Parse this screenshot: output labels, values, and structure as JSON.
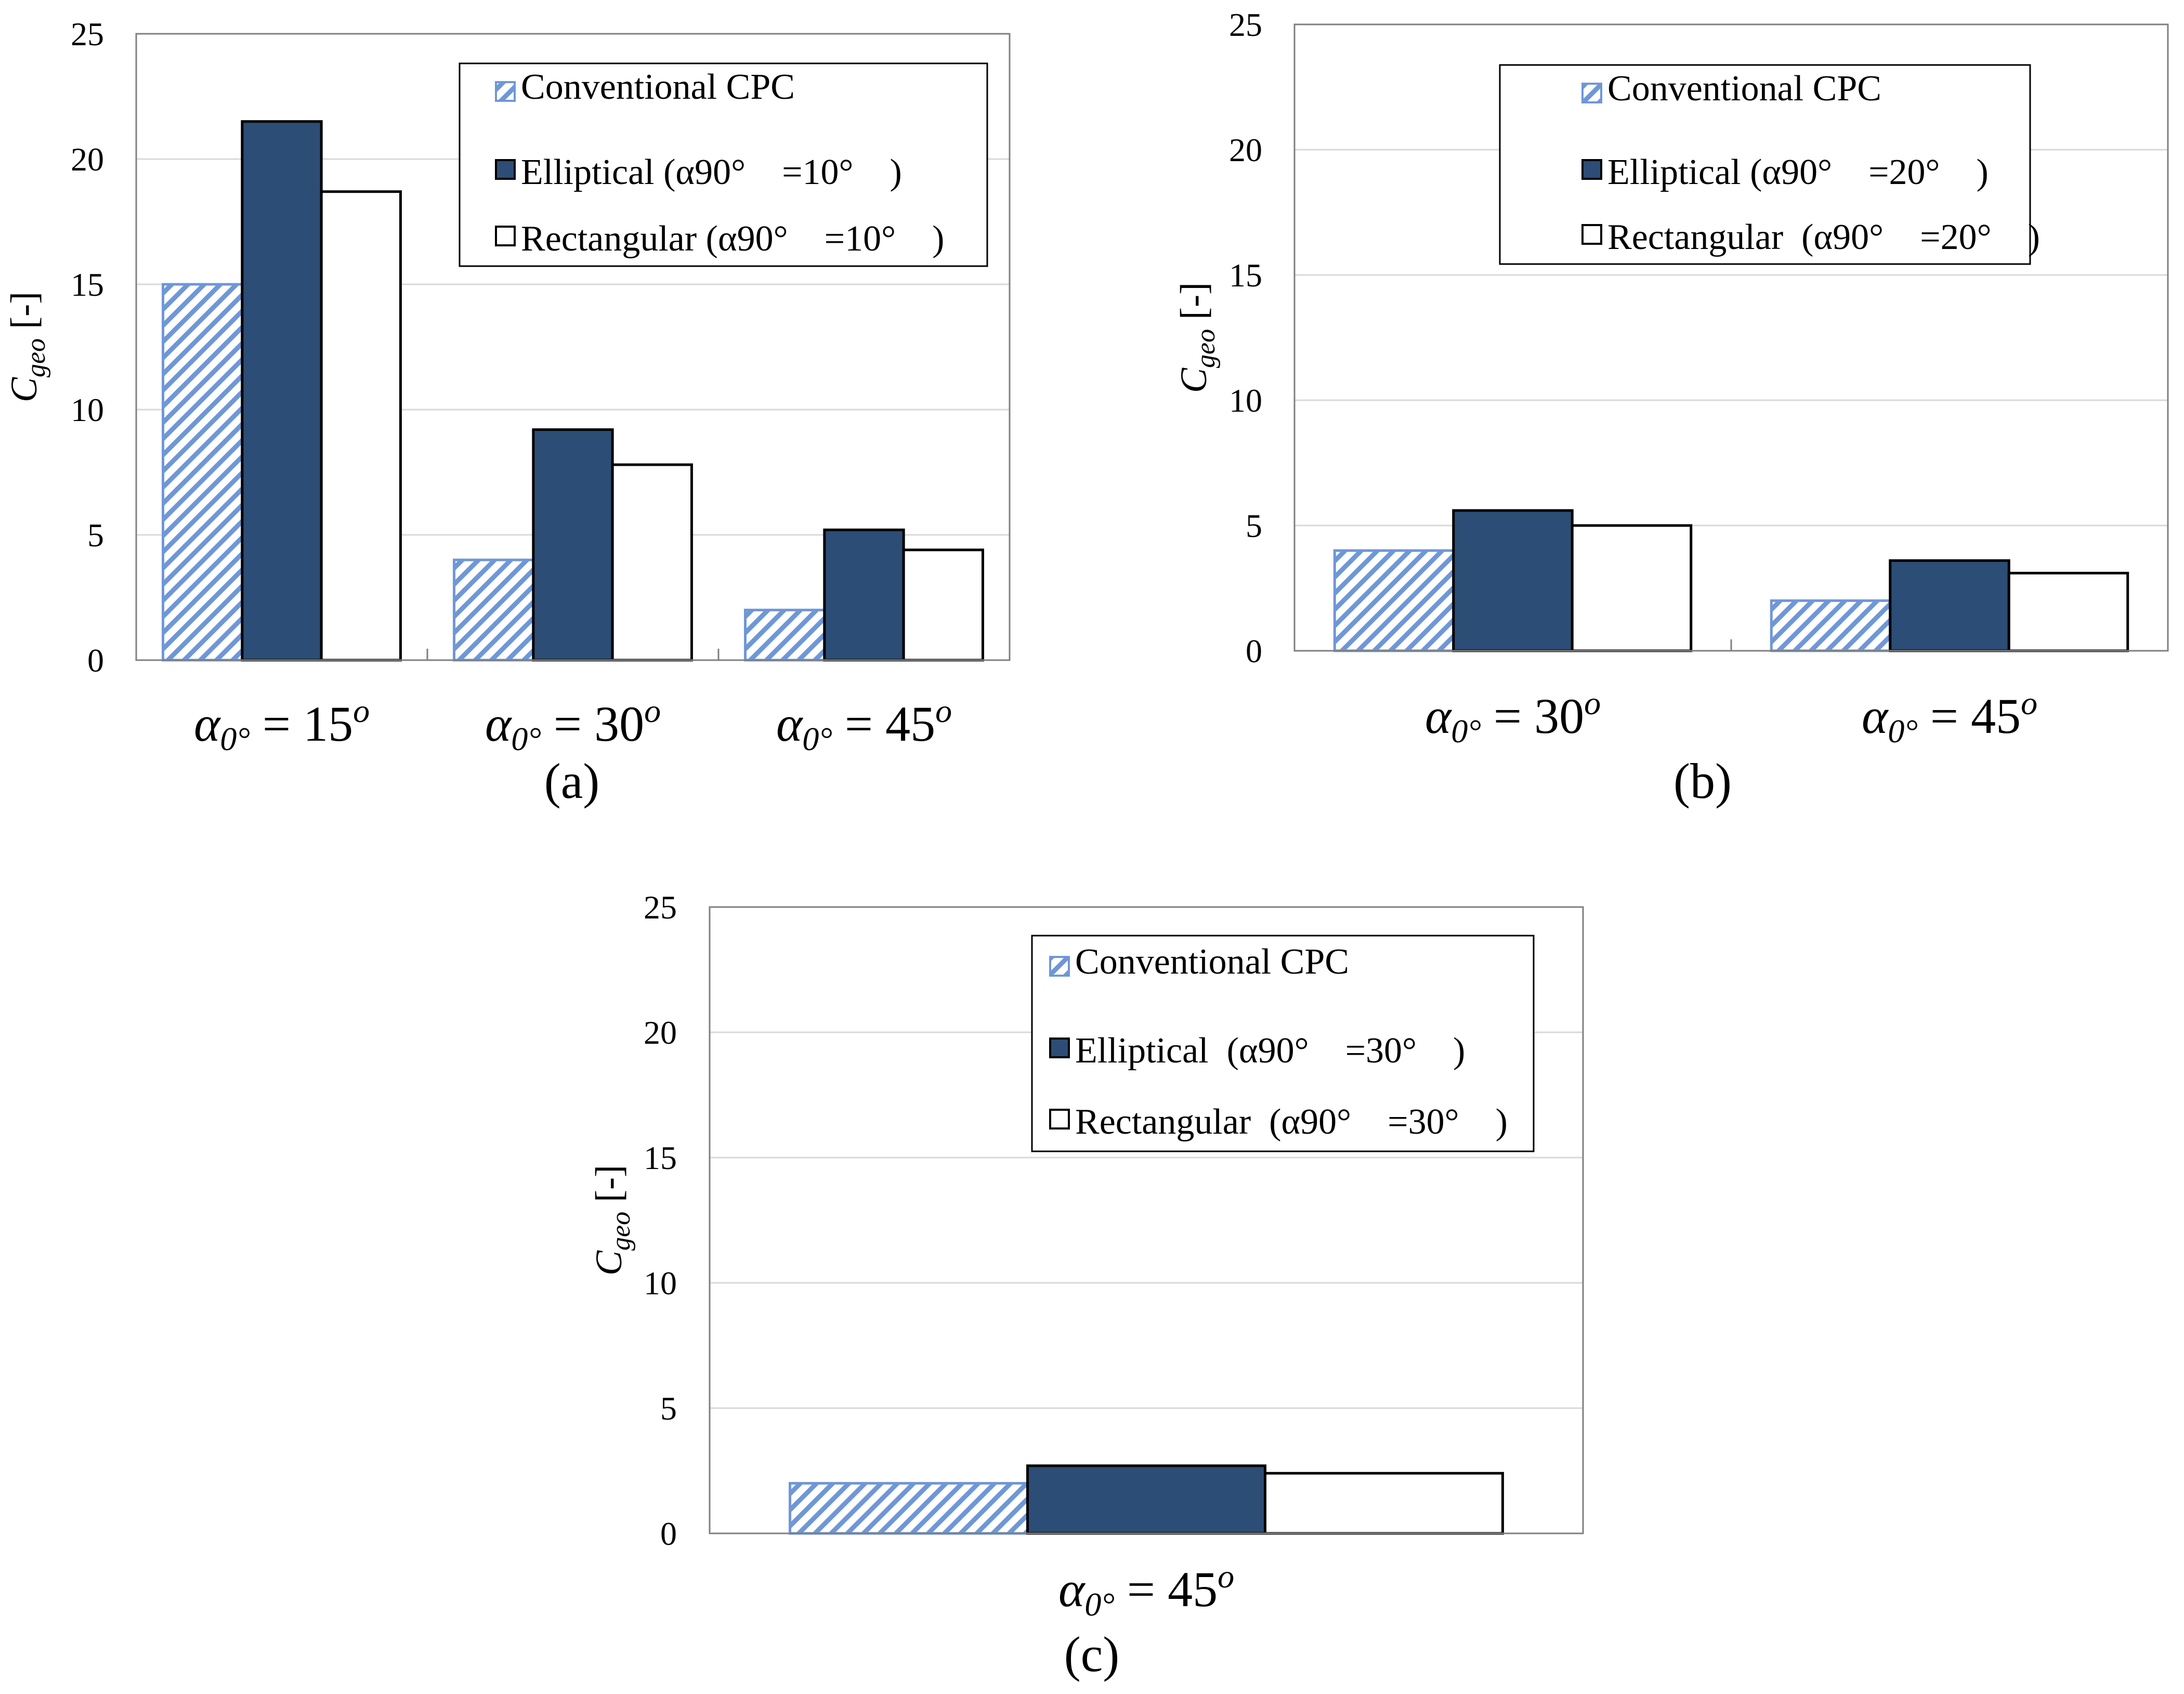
{
  "chart_data": [
    {
      "type": "bar",
      "panel": "(a)",
      "ylabel": {
        "main": "C",
        "sub": "geo",
        "unit": " [-]"
      },
      "ylim": [
        0,
        25
      ],
      "yticks": [
        "0",
        "5",
        "10",
        "15",
        "20",
        "25"
      ],
      "grid": true,
      "legend_position": "top-right",
      "categories": [
        {
          "prefix": "α",
          "sub": "0°",
          "rest": " = 15",
          "sup": "o"
        },
        {
          "prefix": "α",
          "sub": "0°",
          "rest": " = 30",
          "sup": "o"
        },
        {
          "prefix": "α",
          "sub": "0°",
          "rest": " = 45",
          "sup": "o"
        }
      ],
      "series": [
        {
          "name": "Conventional CPC",
          "style": "hatched",
          "values": [
            15.0,
            4.0,
            2.0
          ]
        },
        {
          "name": "Elliptical (α90° =10° )",
          "style": "dark",
          "values": [
            21.5,
            9.2,
            5.2
          ]
        },
        {
          "name": "Rectangular (α90° =10° )",
          "style": "white",
          "values": [
            18.7,
            7.8,
            4.4
          ]
        }
      ]
    },
    {
      "type": "bar",
      "panel": "(b)",
      "ylabel": {
        "main": "C",
        "sub": "geo",
        "unit": " [-]"
      },
      "ylim": [
        0,
        25
      ],
      "yticks": [
        "0",
        "5",
        "10",
        "15",
        "20",
        "25"
      ],
      "grid": true,
      "legend_position": "top-right",
      "categories": [
        {
          "prefix": "α",
          "sub": "0°",
          "rest": " = 30",
          "sup": "o"
        },
        {
          "prefix": "α",
          "sub": "0°",
          "rest": " = 45",
          "sup": "o"
        }
      ],
      "series": [
        {
          "name": "Conventional CPC",
          "style": "hatched",
          "values": [
            4.0,
            2.0
          ]
        },
        {
          "name": "Elliptical (α90° =20° )",
          "style": "dark",
          "values": [
            5.6,
            3.6
          ]
        },
        {
          "name": "Rectangular (α90° =20° )",
          "style": "white",
          "values": [
            5.0,
            3.1
          ]
        }
      ]
    },
    {
      "type": "bar",
      "panel": "(c)",
      "ylabel": {
        "main": "C",
        "sub": "geo",
        "unit": " [-]"
      },
      "ylim": [
        0,
        25
      ],
      "yticks": [
        "0",
        "5",
        "10",
        "15",
        "20",
        "25"
      ],
      "grid": true,
      "legend_position": "top-right",
      "categories": [
        {
          "prefix": "α",
          "sub": "0°",
          "rest": " = 45",
          "sup": "o"
        }
      ],
      "series": [
        {
          "name": "Conventional CPC",
          "style": "hatched",
          "values": [
            2.0
          ]
        },
        {
          "name": "Elliptical (α90° =30° )",
          "style": "dark",
          "values": [
            2.7
          ]
        },
        {
          "name": "Rectangular (α90° =30° )",
          "style": "white",
          "values": [
            2.4
          ]
        }
      ]
    }
  ],
  "colors": {
    "dark_bar": "#2c4d75",
    "hatch": "#6f97d7",
    "grid": "#d9d9d9",
    "axis": "#7f7f7f"
  }
}
